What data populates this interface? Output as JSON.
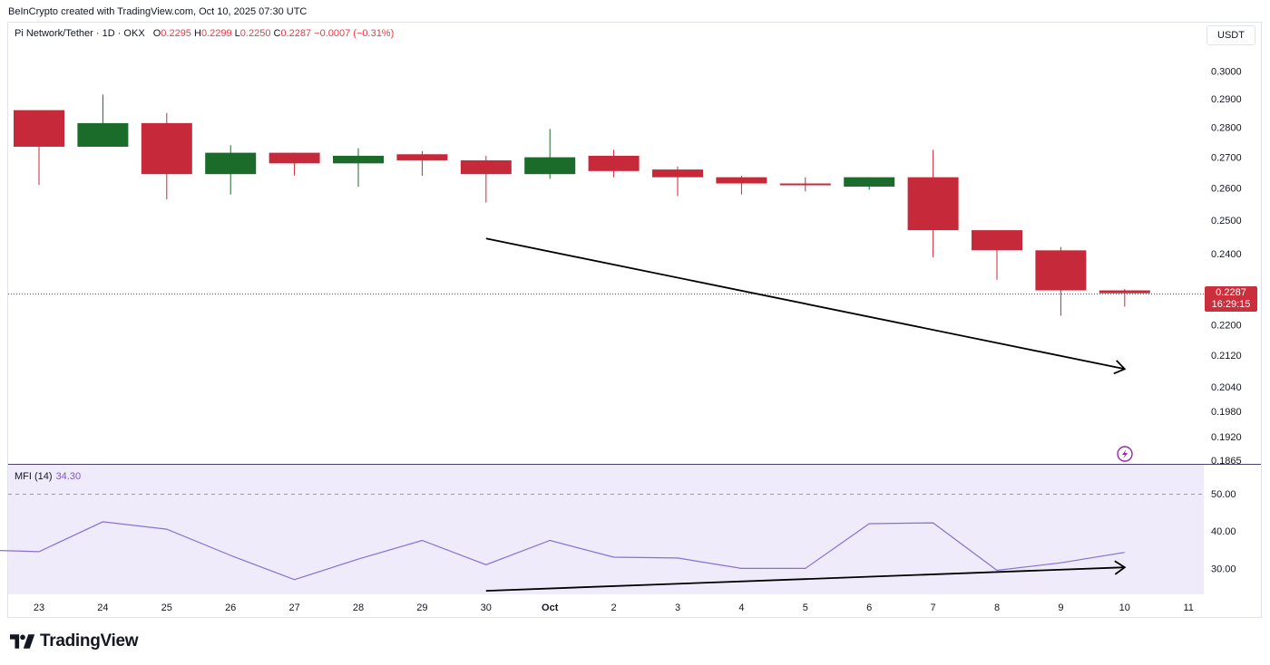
{
  "credit": "BeInCrypto created with TradingView.com, Oct 10, 2025 07:30 UTC",
  "header": {
    "symbol": "Pi Network/Tether · 1D · OKX",
    "o_label": "O",
    "o_value": "0.2295",
    "h_label": "H",
    "h_value": "0.2299",
    "l_label": "L",
    "l_value": "0.2250",
    "c_label": "C",
    "c_value": "0.2287",
    "change": "−0.0007 (−0.31%)"
  },
  "currency": "USDT",
  "last_price": {
    "price": "0.2287",
    "countdown": "16:29:15"
  },
  "mfi": {
    "label": "MFI (14)",
    "value": "34.30"
  },
  "logo_text": "TradingView",
  "colors": {
    "up": "#1b6b2a",
    "down": "#c62a3a",
    "mfi_line": "#8a6fd1",
    "mfi_bg": "#efebfb"
  },
  "chart_data": [
    {
      "type": "candlestick",
      "x_labels": [
        "23",
        "24",
        "25",
        "26",
        "27",
        "28",
        "29",
        "30",
        "Oct",
        "2",
        "3",
        "4",
        "5",
        "6",
        "7",
        "8",
        "9",
        "10",
        "11"
      ],
      "y_ticks": [
        "0.3000",
        "0.2900",
        "0.2800",
        "0.2700",
        "0.2600",
        "0.2500",
        "0.2400",
        "0.2200",
        "0.2120",
        "0.2040",
        "0.1980",
        "0.1920",
        "0.1865"
      ],
      "y_scale": "log",
      "candles": [
        {
          "o": 0.286,
          "h": 0.286,
          "l": 0.261,
          "c": 0.2735
        },
        {
          "o": 0.2735,
          "h": 0.2915,
          "l": 0.2735,
          "c": 0.2815
        },
        {
          "o": 0.2815,
          "h": 0.285,
          "l": 0.2565,
          "c": 0.2645
        },
        {
          "o": 0.2645,
          "h": 0.274,
          "l": 0.258,
          "c": 0.2715
        },
        {
          "o": 0.2715,
          "h": 0.2715,
          "l": 0.264,
          "c": 0.268
        },
        {
          "o": 0.268,
          "h": 0.273,
          "l": 0.2605,
          "c": 0.2705
        },
        {
          "o": 0.271,
          "h": 0.272,
          "l": 0.264,
          "c": 0.269
        },
        {
          "o": 0.269,
          "h": 0.2705,
          "l": 0.2555,
          "c": 0.2645
        },
        {
          "o": 0.2645,
          "h": 0.2795,
          "l": 0.263,
          "c": 0.27
        },
        {
          "o": 0.2705,
          "h": 0.2725,
          "l": 0.2635,
          "c": 0.2655
        },
        {
          "o": 0.266,
          "h": 0.267,
          "l": 0.2575,
          "c": 0.2635
        },
        {
          "o": 0.2635,
          "h": 0.264,
          "l": 0.258,
          "c": 0.2615
        },
        {
          "o": 0.2615,
          "h": 0.2635,
          "l": 0.259,
          "c": 0.261
        },
        {
          "o": 0.2605,
          "h": 0.2635,
          "l": 0.2595,
          "c": 0.2635
        },
        {
          "o": 0.2635,
          "h": 0.2725,
          "l": 0.239,
          "c": 0.247
        },
        {
          "o": 0.247,
          "h": 0.247,
          "l": 0.2325,
          "c": 0.241
        },
        {
          "o": 0.241,
          "h": 0.242,
          "l": 0.2225,
          "c": 0.2295
        },
        {
          "o": 0.2295,
          "h": 0.2299,
          "l": 0.225,
          "c": 0.2287
        }
      ],
      "trend_arrow": {
        "from": {
          "x": "30",
          "y": 0.2445
        },
        "to": {
          "x": "10",
          "y": 0.2085
        }
      }
    },
    {
      "type": "line",
      "name": "MFI (14)",
      "y_ticks": [
        "50.00",
        "40.00",
        "30.00"
      ],
      "overbought_line": 50,
      "x": [
        "22",
        "23",
        "24",
        "25",
        "26",
        "27",
        "28",
        "29",
        "30",
        "Oct",
        "2",
        "3",
        "4",
        "5",
        "6",
        "7",
        "8",
        "9",
        "10"
      ],
      "values": [
        35.0,
        34.5,
        42.5,
        40.5,
        33.5,
        27.0,
        32.5,
        37.5,
        31.0,
        37.5,
        33.0,
        32.8,
        30.0,
        30.0,
        42.0,
        42.2,
        29.5,
        31.5,
        34.3
      ],
      "trend_arrow": {
        "from": {
          "x": "30",
          "y": 24.0
        },
        "to": {
          "x": "10",
          "y": 30.3
        }
      }
    }
  ]
}
